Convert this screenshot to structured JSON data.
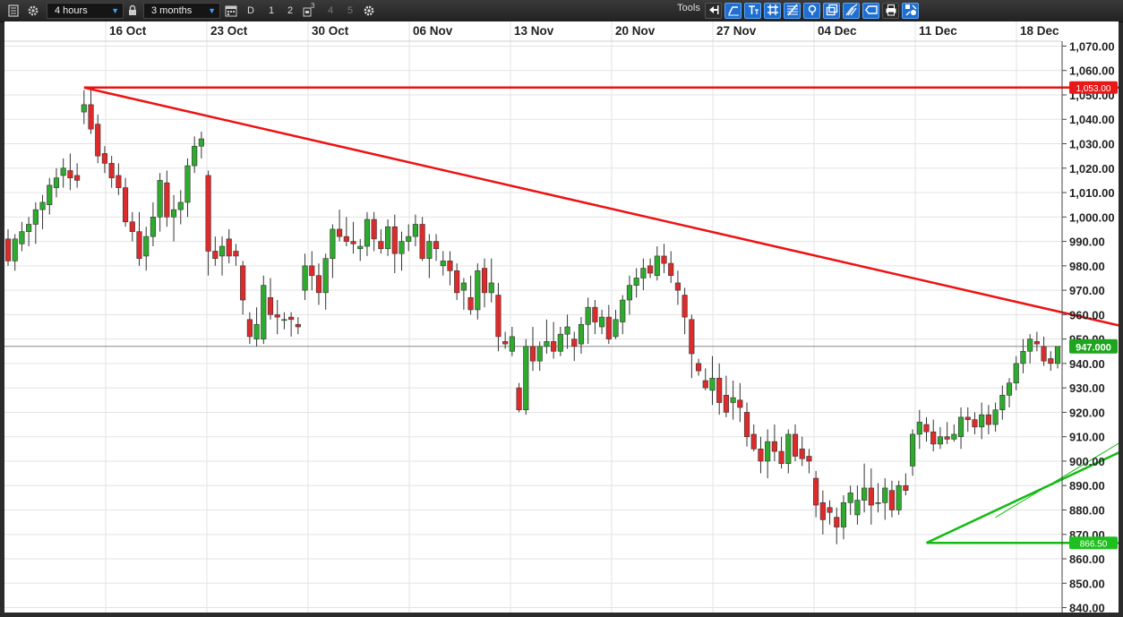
{
  "toolbar": {
    "interval": "4 hours",
    "range": "3 months",
    "buttons": [
      "D",
      "1",
      "2",
      "3",
      "4",
      "5"
    ],
    "tools_label": "Tools",
    "accent": "#1f6fd0"
  },
  "chart_data": {
    "type": "candlestick",
    "x_ticks": [
      "16 Oct",
      "23 Oct",
      "30 Oct",
      "06 Nov",
      "13 Nov",
      "20 Nov",
      "27 Nov",
      "04 Dec",
      "11 Dec",
      "18 Dec"
    ],
    "y_ticks": [
      "1,070.00",
      "1,060.00",
      "1,050.00",
      "1,040.00",
      "1,030.00",
      "1,020.00",
      "1,010.00",
      "1,000.00",
      "990.00",
      "980.00",
      "970.00",
      "960.00",
      "950.00",
      "940.00",
      "930.00",
      "920.00",
      "910.00",
      "900.00",
      "890.00",
      "880.00",
      "870.00",
      "860.00",
      "850.00",
      "840.00"
    ],
    "ylim": [
      838,
      1072
    ],
    "grid": true,
    "colors": {
      "up": "#2eaa2e",
      "down": "#dd2b2b",
      "resistance": "#ee1111",
      "support": "#11bb11",
      "bg": "#ffffff",
      "grid": "#e3e3e3"
    },
    "candles": [
      [
        991,
        995,
        980,
        982
      ],
      [
        982,
        993,
        978,
        991
      ],
      [
        989,
        998,
        986,
        994
      ],
      [
        994,
        1000,
        988,
        997
      ],
      [
        997,
        1006,
        989,
        1003
      ],
      [
        1003,
        1009,
        995,
        1006
      ],
      [
        1005,
        1016,
        1001,
        1013
      ],
      [
        1012,
        1020,
        1008,
        1016
      ],
      [
        1017,
        1024,
        1012,
        1020
      ],
      [
        1019,
        1026,
        1011,
        1016
      ],
      [
        1017,
        1022,
        1012,
        1015
      ],
      [
        1043,
        1052,
        1038,
        1046
      ],
      [
        1046,
        1053,
        1034,
        1036
      ],
      [
        1038,
        1042,
        1022,
        1025
      ],
      [
        1026,
        1029,
        1018,
        1022
      ],
      [
        1022,
        1025,
        1012,
        1016
      ],
      [
        1017,
        1022,
        1009,
        1012
      ],
      [
        1012,
        1016,
        996,
        998
      ],
      [
        998,
        1002,
        990,
        994
      ],
      [
        994,
        1002,
        980,
        983
      ],
      [
        984,
        996,
        978,
        992
      ],
      [
        992,
        1006,
        988,
        1000
      ],
      [
        1000,
        1018,
        994,
        1015
      ],
      [
        1014,
        1019,
        996,
        1000
      ],
      [
        1000,
        1009,
        990,
        1003
      ],
      [
        1003,
        1011,
        997,
        1006
      ],
      [
        1006,
        1024,
        1000,
        1021
      ],
      [
        1021,
        1033,
        1018,
        1029
      ],
      [
        1029,
        1035,
        1024,
        1032
      ],
      [
        1017,
        1019,
        976,
        986
      ],
      [
        986,
        992,
        980,
        983
      ],
      [
        984,
        992,
        976,
        988
      ],
      [
        991,
        995,
        981,
        984
      ],
      [
        986,
        989,
        980,
        984
      ],
      [
        980,
        982,
        960,
        966
      ],
      [
        958,
        961,
        948,
        951
      ],
      [
        950,
        963,
        947,
        956
      ],
      [
        950,
        976,
        948,
        972
      ],
      [
        967,
        975,
        958,
        960
      ],
      [
        960,
        966,
        952,
        959
      ],
      [
        958,
        961,
        954,
        958
      ],
      [
        959,
        961,
        951,
        958
      ],
      [
        956,
        959,
        952,
        955
      ],
      [
        970,
        985,
        966,
        980
      ],
      [
        980,
        986,
        970,
        976
      ],
      [
        976,
        981,
        964,
        969
      ],
      [
        969,
        985,
        962,
        983
      ],
      [
        983,
        997,
        975,
        995
      ],
      [
        995,
        1003,
        990,
        992
      ],
      [
        992,
        1000,
        988,
        990
      ],
      [
        990,
        998,
        985,
        989
      ],
      [
        987,
        991,
        982,
        988
      ],
      [
        988,
        1002,
        984,
        999
      ],
      [
        999,
        1002,
        986,
        991
      ],
      [
        990,
        995,
        985,
        987
      ],
      [
        987,
        999,
        984,
        996
      ],
      [
        996,
        1001,
        977,
        985
      ],
      [
        985,
        994,
        978,
        990
      ],
      [
        990,
        997,
        986,
        992
      ],
      [
        992,
        1001,
        988,
        997
      ],
      [
        997,
        1000,
        982,
        983
      ],
      [
        983,
        993,
        975,
        990
      ],
      [
        990,
        993,
        982,
        987
      ],
      [
        980,
        986,
        976,
        982
      ],
      [
        982,
        986,
        972,
        978
      ],
      [
        978,
        981,
        966,
        969
      ],
      [
        970,
        975,
        962,
        973
      ],
      [
        967,
        976,
        960,
        962
      ],
      [
        962,
        981,
        958,
        978
      ],
      [
        979,
        983,
        963,
        969
      ],
      [
        969,
        983,
        965,
        973
      ],
      [
        968,
        973,
        945,
        951
      ],
      [
        949,
        953,
        946,
        948
      ],
      [
        945,
        955,
        943,
        951
      ],
      [
        930,
        932,
        920,
        921
      ],
      [
        921,
        950,
        919,
        947
      ],
      [
        947,
        955,
        937,
        941
      ],
      [
        941,
        949,
        937,
        947
      ],
      [
        947,
        958,
        944,
        949
      ],
      [
        949,
        957,
        942,
        945
      ],
      [
        945,
        955,
        943,
        952
      ],
      [
        952,
        960,
        946,
        955
      ],
      [
        950,
        953,
        941,
        947
      ],
      [
        948,
        959,
        944,
        956
      ],
      [
        956,
        967,
        948,
        963
      ],
      [
        963,
        966,
        952,
        957
      ],
      [
        955,
        962,
        952,
        959
      ],
      [
        959,
        964,
        948,
        950
      ],
      [
        951,
        962,
        950,
        958
      ],
      [
        957,
        968,
        952,
        966
      ],
      [
        966,
        976,
        960,
        972
      ],
      [
        972,
        979,
        967,
        975
      ],
      [
        975,
        983,
        970,
        979
      ],
      [
        980,
        983,
        975,
        977
      ],
      [
        976,
        988,
        974,
        984
      ],
      [
        984,
        989,
        977,
        981
      ],
      [
        981,
        986,
        973,
        976
      ],
      [
        973,
        978,
        964,
        970
      ],
      [
        968,
        971,
        952,
        959
      ],
      [
        958,
        960,
        934,
        944
      ],
      [
        940,
        942,
        935,
        937
      ],
      [
        933,
        938,
        929,
        930
      ],
      [
        929,
        943,
        923,
        934
      ],
      [
        934,
        940,
        919,
        924
      ],
      [
        927,
        935,
        918,
        920
      ],
      [
        924,
        933,
        917,
        926
      ],
      [
        925,
        932,
        916,
        922
      ],
      [
        920,
        924,
        906,
        910
      ],
      [
        911,
        915,
        904,
        905
      ],
      [
        905,
        910,
        895,
        900
      ],
      [
        900,
        913,
        893,
        908
      ],
      [
        908,
        915,
        900,
        904
      ],
      [
        904,
        910,
        897,
        899
      ],
      [
        899,
        913,
        895,
        911
      ],
      [
        911,
        915,
        900,
        902
      ],
      [
        905,
        910,
        898,
        901
      ],
      [
        902,
        905,
        895,
        900
      ],
      [
        893,
        896,
        877,
        882
      ],
      [
        883,
        888,
        870,
        876
      ],
      [
        881,
        884,
        874,
        879
      ],
      [
        877,
        881,
        866,
        873
      ],
      [
        873,
        886,
        868,
        883
      ],
      [
        883,
        890,
        878,
        887
      ],
      [
        878,
        890,
        874,
        884
      ],
      [
        884,
        899,
        879,
        889
      ],
      [
        889,
        897,
        874,
        882
      ],
      [
        883,
        891,
        879,
        883
      ],
      [
        883,
        893,
        876,
        889
      ],
      [
        888,
        892,
        877,
        880
      ],
      [
        880,
        892,
        878,
        890
      ],
      [
        890,
        895,
        886,
        888
      ],
      [
        898,
        913,
        894,
        911
      ],
      [
        911,
        921,
        905,
        916
      ],
      [
        915,
        918,
        908,
        912
      ],
      [
        912,
        917,
        904,
        907
      ],
      [
        907,
        914,
        905,
        910
      ],
      [
        910,
        916,
        907,
        909
      ],
      [
        909,
        915,
        908,
        911
      ],
      [
        910,
        922,
        905,
        918
      ],
      [
        918,
        922,
        912,
        917
      ],
      [
        917,
        920,
        911,
        914
      ],
      [
        914,
        924,
        909,
        919
      ],
      [
        919,
        923,
        911,
        915
      ],
      [
        915,
        924,
        912,
        921
      ],
      [
        921,
        931,
        917,
        927
      ],
      [
        927,
        934,
        922,
        932
      ],
      [
        932,
        943,
        929,
        940
      ],
      [
        940,
        950,
        936,
        945
      ],
      [
        945,
        952,
        940,
        950
      ],
      [
        949,
        953,
        945,
        948
      ],
      [
        947,
        951,
        939,
        941
      ],
      [
        942,
        945,
        937,
        940
      ],
      [
        940,
        946,
        938,
        947
      ]
    ],
    "last_price": 947.0,
    "last_price_label": "947.000",
    "resistance_level": 1053.0,
    "resistance_label": "1,053.00",
    "support_level": 866.5,
    "support_label": "866.50",
    "trendlines": [
      {
        "name": "descending-resistance",
        "from_candle": 11,
        "from_price": 1053,
        "to_candle": 171,
        "to_price": 949
      },
      {
        "name": "ascending-support",
        "from_candle": 133,
        "from_price": 866.5,
        "to_candle": 165,
        "to_price": 909
      },
      {
        "name": "ascending-support-extension",
        "from_candle": 143,
        "from_price": 877,
        "to_candle": 176,
        "to_price": 933
      }
    ]
  }
}
